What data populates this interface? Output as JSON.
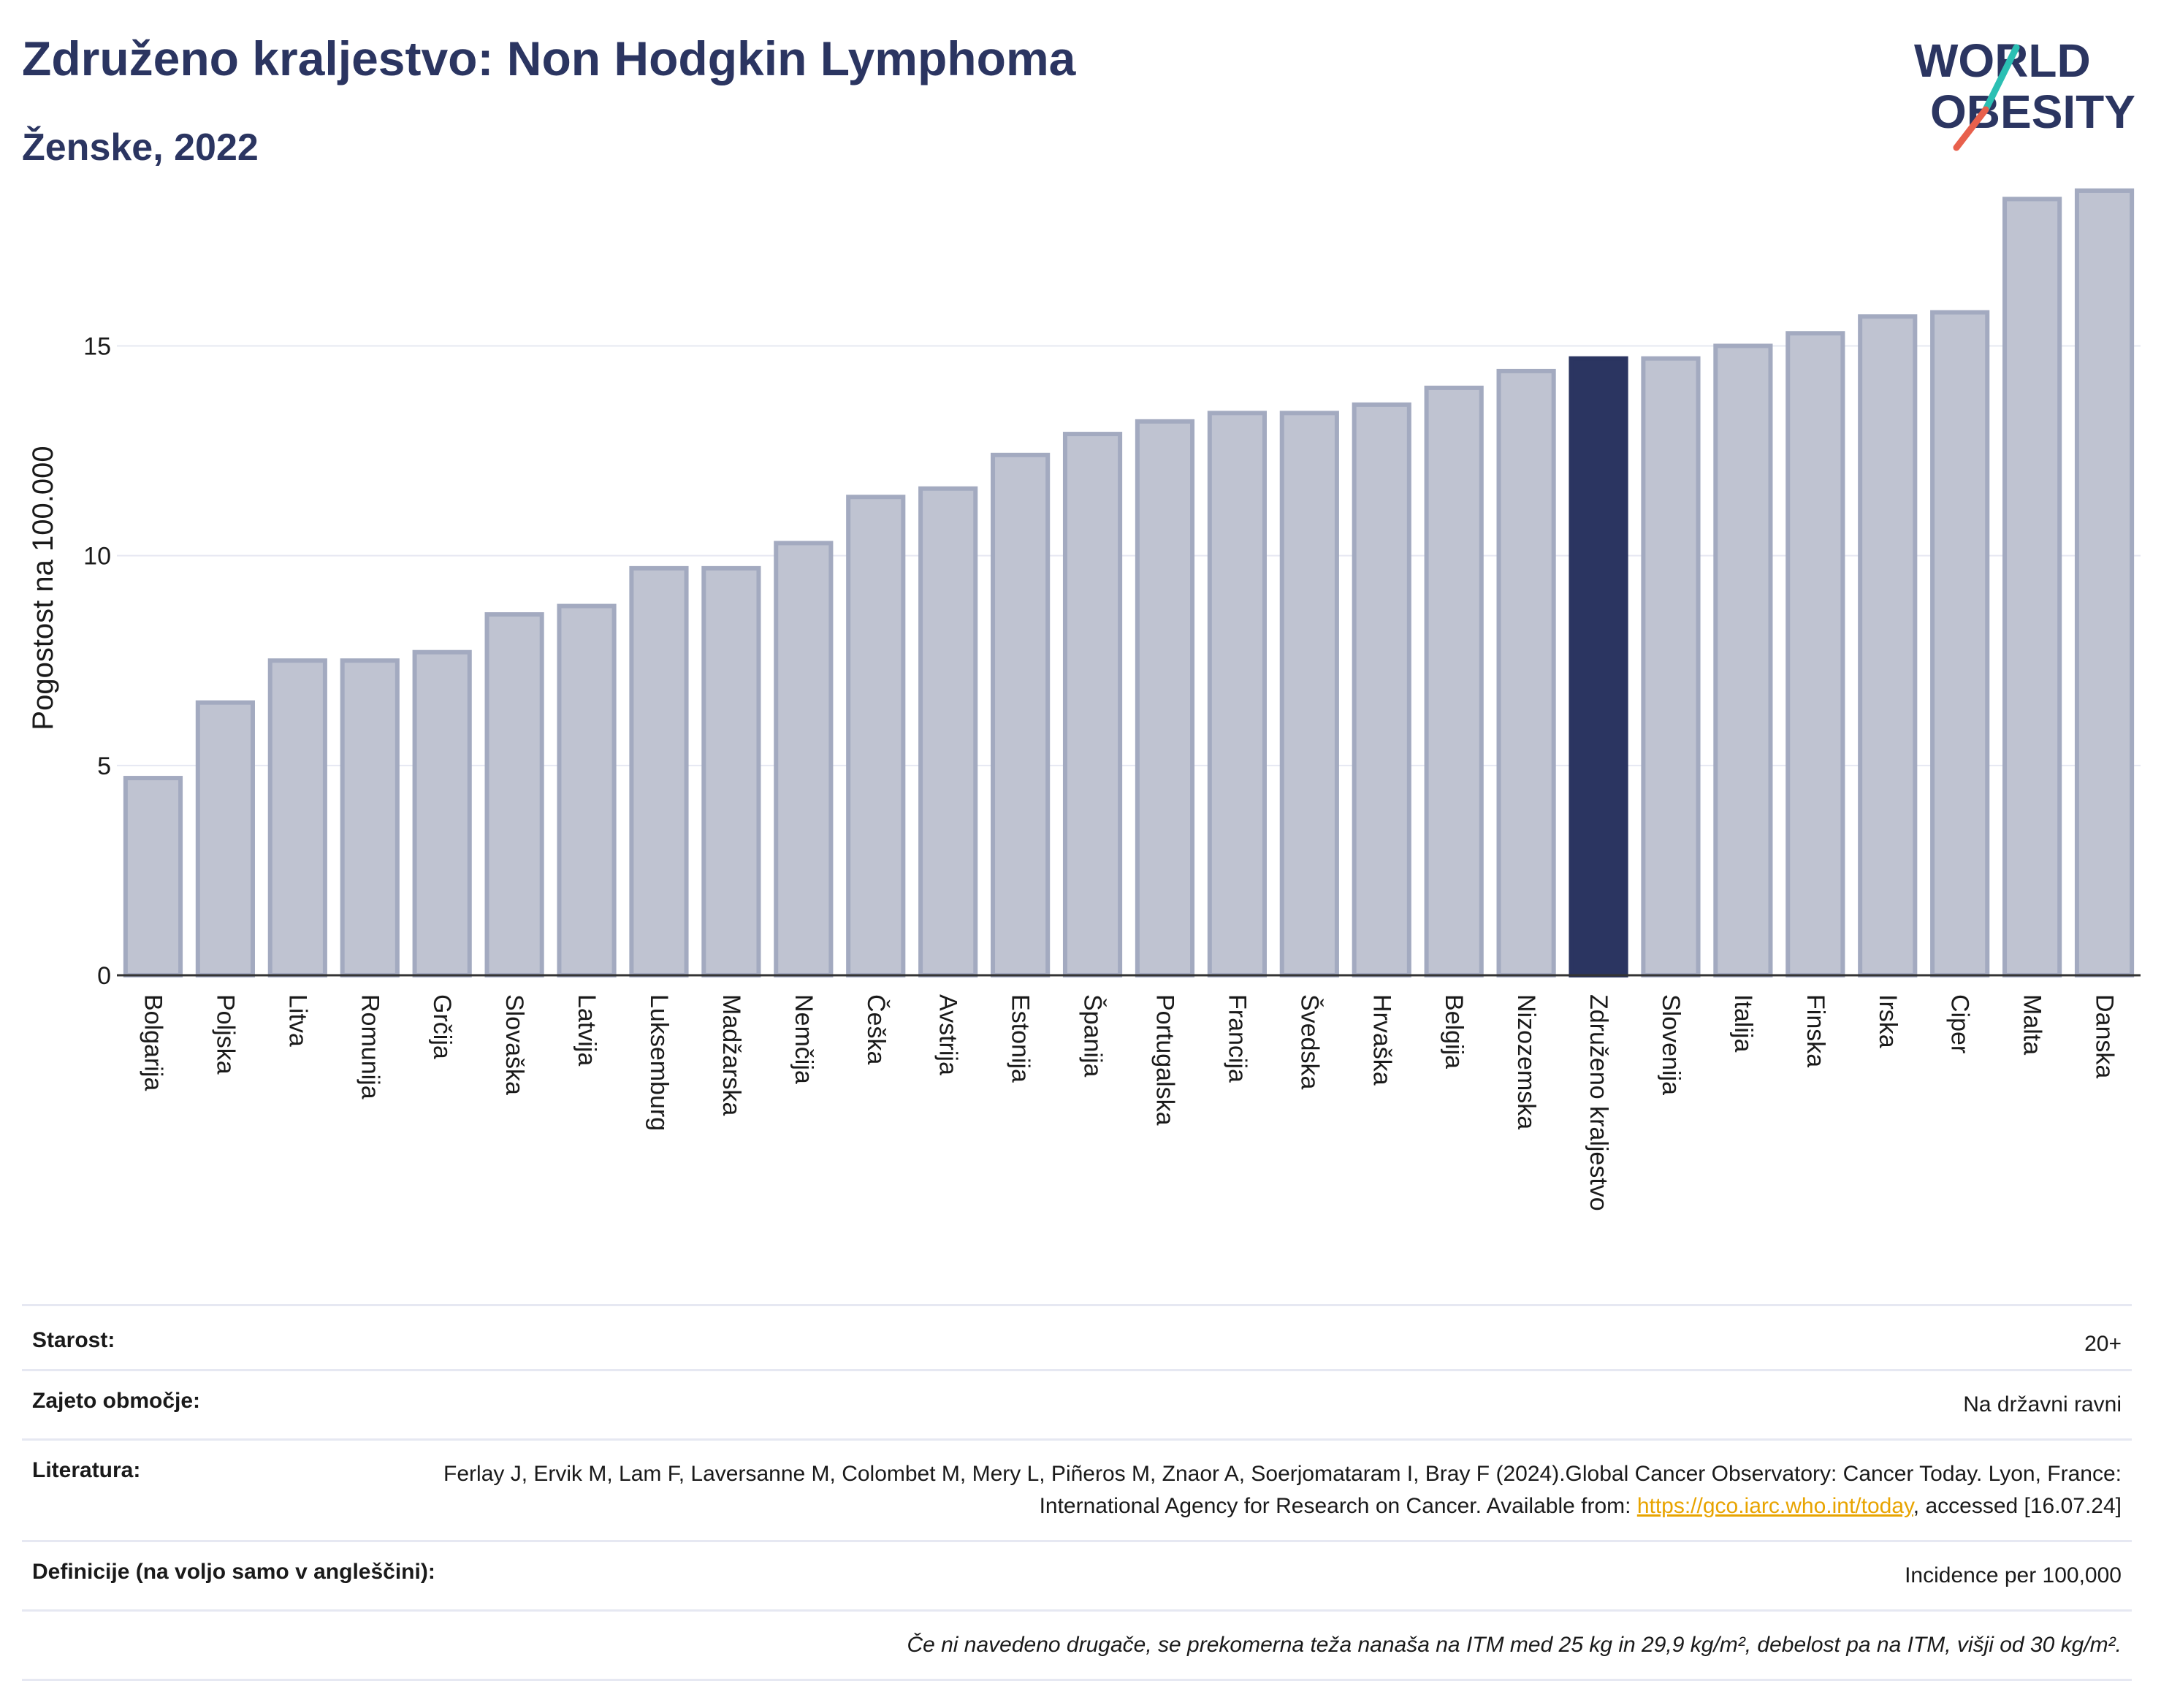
{
  "header": {
    "title": "Združeno kraljestvo: Non Hodgkin Lymphoma",
    "subtitle": "Ženske, 2022"
  },
  "logo": {
    "line1": "WORLD",
    "line2": "OBESITY",
    "accent_colors": [
      "#2bbfb3",
      "#e8604c"
    ]
  },
  "colors": {
    "bar": "#bfc3d1",
    "bar_border": "#a3aac0",
    "highlight": "#2b3561",
    "grid": "#e6e8f2",
    "text": "#2b3561"
  },
  "chart_data": {
    "type": "bar",
    "ylabel": "Pogostost na 100.000",
    "ylim": [
      0,
      19.5
    ],
    "yticks": [
      0,
      5,
      10,
      15
    ],
    "grid": true,
    "highlight": "Združeno kraljestvo",
    "categories": [
      "Bolgarija",
      "Poljska",
      "Litva",
      "Romunija",
      "Grčija",
      "Slovaška",
      "Latvija",
      "Luksemburg",
      "Madžarska",
      "Nemčija",
      "Češka",
      "Avstrija",
      "Estonija",
      "Španija",
      "Portugalska",
      "Francija",
      "Švedska",
      "Hrvaška",
      "Belgija",
      "Nizozemska",
      "Združeno kraljestvo",
      "Slovenija",
      "Italija",
      "Finska",
      "Irska",
      "Ciper",
      "Malta",
      "Danska"
    ],
    "values": [
      4.7,
      6.5,
      7.5,
      7.5,
      7.7,
      8.6,
      8.8,
      9.7,
      9.7,
      10.3,
      11.4,
      11.6,
      12.4,
      12.9,
      13.2,
      13.4,
      13.4,
      13.6,
      14.0,
      14.4,
      14.7,
      14.7,
      15.0,
      15.3,
      15.7,
      15.8,
      18.5,
      18.7
    ]
  },
  "meta": {
    "age_label": "Starost:",
    "age_value": "20+",
    "coverage_label": "Zajeto območje:",
    "coverage_value": "Na državni ravni",
    "ref_label": "Literatura:",
    "ref_text_1": "Ferlay J, Ervik M, Lam F, Laversanne M, Colombet M, Mery L, Piñeros M, Znaor A, Soerjomataram I, Bray F (2024).Global Cancer Observatory: Cancer Today. Lyon, France: International Agency for Research on Cancer. Available from: ",
    "ref_link": "https://gco.iarc.who.int/today",
    "ref_text_2": ", accessed [16.07.24]",
    "def_label": "Definicije (na voljo samo v angleščini):",
    "def_value": "Incidence per 100,000",
    "note": "Če ni navedeno drugače, se prekomerna teža nanaša na ITM med 25 kg in 29,9 kg/m², debelost pa na ITM, višji od 30 kg/m²."
  }
}
